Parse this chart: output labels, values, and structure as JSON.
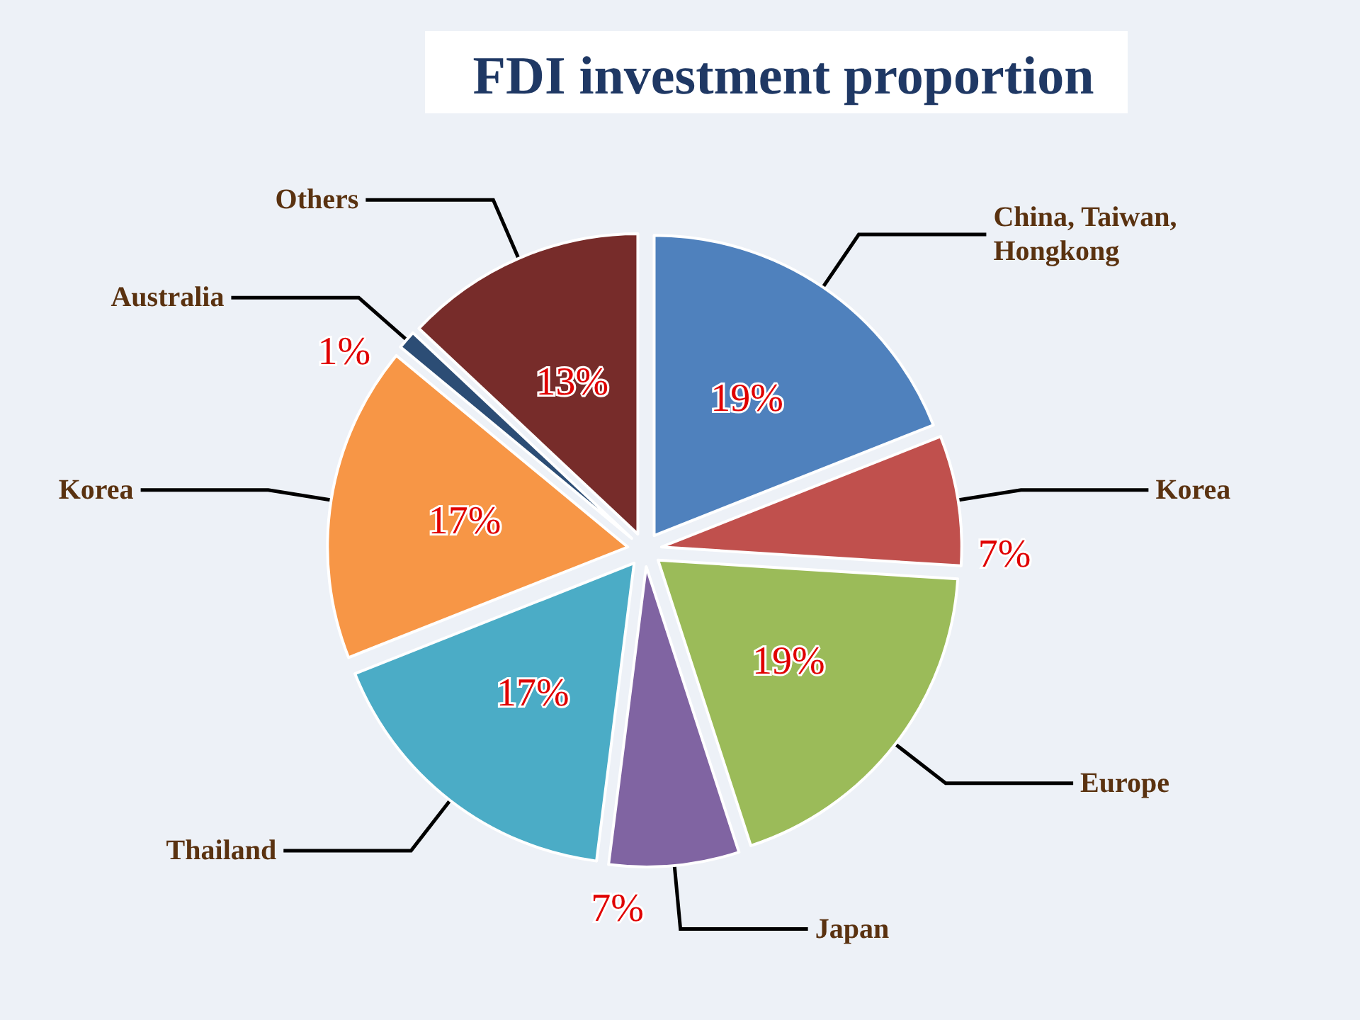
{
  "chart_data": {
    "type": "pie",
    "title": "FDI investment proportion",
    "categories": [
      "China, Taiwan, Hongkong",
      "Korea",
      "Europe",
      "Japan",
      "Thailand",
      "Korea",
      "Australia",
      "Others"
    ],
    "values": [
      19,
      7,
      19,
      7,
      17,
      17,
      1,
      13
    ],
    "value_labels": [
      "19%",
      "7%",
      "19%",
      "7%",
      "17%",
      "17%",
      "1%",
      "13%"
    ],
    "colors": [
      "#4f81bd",
      "#c0504d",
      "#9bbb59",
      "#8064a2",
      "#4bacc6",
      "#f79646",
      "#2c4d75",
      "#772c2a"
    ],
    "legend": false
  }
}
